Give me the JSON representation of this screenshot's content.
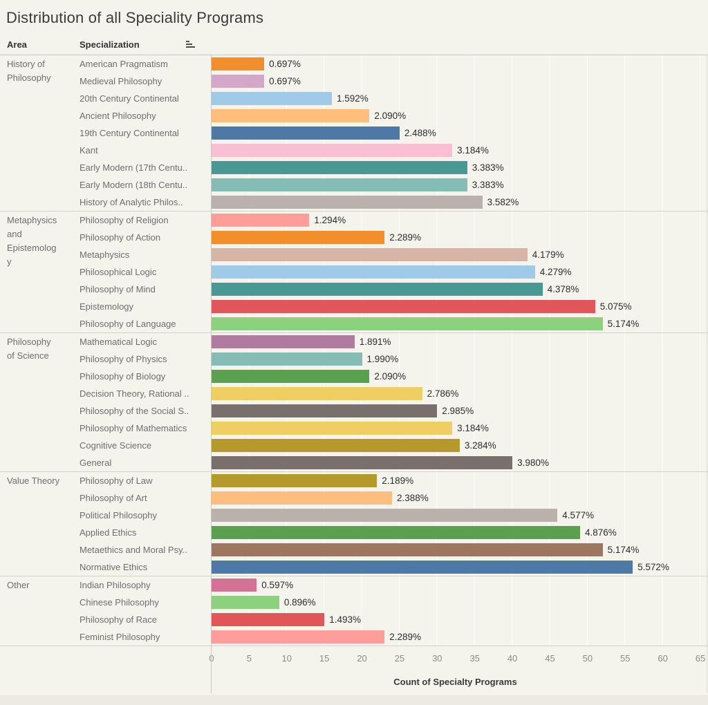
{
  "title": "Distribution of all Speciality Programs",
  "header": {
    "area": "Area",
    "specialization": "Specialization"
  },
  "axis": {
    "title": "Count of Specialty Programs",
    "ticks": [
      0,
      5,
      10,
      15,
      20,
      25,
      30,
      35,
      40,
      45,
      50,
      55,
      60,
      65
    ],
    "min": 0,
    "max": 65
  },
  "chart_data": {
    "type": "bar",
    "orientation": "horizontal",
    "title": "Distribution of all Speciality Programs",
    "xlabel": "Count of Specialty Programs",
    "xlim": [
      0,
      65
    ],
    "grid": "vertical-faint",
    "groups": [
      {
        "area": "History of Philosophy",
        "area_lines": [
          "History of",
          "Philosophy"
        ],
        "rows": [
          {
            "label": "American Pragmatism",
            "count": 7,
            "pct": "0.697%",
            "color": "#F28E2B"
          },
          {
            "label": "Medieval Philosophy",
            "count": 7,
            "pct": "0.697%",
            "color": "#D4A6C8"
          },
          {
            "label": "20th Century Continental",
            "count": 16,
            "pct": "1.592%",
            "color": "#A0CBE8"
          },
          {
            "label": "Ancient Philosophy",
            "count": 21,
            "pct": "2.090%",
            "color": "#FFBE7D"
          },
          {
            "label": "19th Century Continental",
            "count": 25,
            "pct": "2.488%",
            "color": "#4E79A7"
          },
          {
            "label": "Kant",
            "count": 32,
            "pct": "3.184%",
            "color": "#FABFD2"
          },
          {
            "label": "Early Modern (17th Centu..",
            "count": 34,
            "pct": "3.383%",
            "color": "#499894"
          },
          {
            "label": "Early Modern (18th Centu..",
            "count": 34,
            "pct": "3.383%",
            "color": "#86BCB6"
          },
          {
            "label": "History of Analytic Philos..",
            "count": 36,
            "pct": "3.582%",
            "color": "#BAB0AC"
          }
        ]
      },
      {
        "area": "Metaphysics and Epistemology",
        "area_lines": [
          "Metaphysics",
          "and",
          "Epistemolog",
          "y"
        ],
        "rows": [
          {
            "label": "Philosophy of Religion",
            "count": 13,
            "pct": "1.294%",
            "color": "#FF9D9A"
          },
          {
            "label": "Philosophy of Action",
            "count": 23,
            "pct": "2.289%",
            "color": "#F28E2B"
          },
          {
            "label": "Metaphysics",
            "count": 42,
            "pct": "4.179%",
            "color": "#D7B5A6"
          },
          {
            "label": "Philosophical Logic",
            "count": 43,
            "pct": "4.279%",
            "color": "#A0CBE8"
          },
          {
            "label": "Philosophy of Mind",
            "count": 44,
            "pct": "4.378%",
            "color": "#499894"
          },
          {
            "label": "Epistemology",
            "count": 51,
            "pct": "5.075%",
            "color": "#E15759"
          },
          {
            "label": "Philosophy of Language",
            "count": 52,
            "pct": "5.174%",
            "color": "#8CD17D"
          }
        ]
      },
      {
        "area": "Philosophy of Science",
        "area_lines": [
          "Philosophy",
          "of Science"
        ],
        "rows": [
          {
            "label": "Mathematical Logic",
            "count": 19,
            "pct": "1.891%",
            "color": "#B07AA1"
          },
          {
            "label": "Philosophy of Physics",
            "count": 20,
            "pct": "1.990%",
            "color": "#86BCB6"
          },
          {
            "label": "Philosophy of Biology",
            "count": 21,
            "pct": "2.090%",
            "color": "#59A14F"
          },
          {
            "label": "Decision Theory, Rational ..",
            "count": 28,
            "pct": "2.786%",
            "color": "#F1CE63"
          },
          {
            "label": "Philosophy of the Social S..",
            "count": 30,
            "pct": "2.985%",
            "color": "#79706E"
          },
          {
            "label": "Philosophy of Mathematics",
            "count": 32,
            "pct": "3.184%",
            "color": "#F1CE63"
          },
          {
            "label": "Cognitive Science",
            "count": 33,
            "pct": "3.284%",
            "color": "#B6992D"
          },
          {
            "label": "General",
            "count": 40,
            "pct": "3.980%",
            "color": "#79706E"
          }
        ]
      },
      {
        "area": "Value Theory",
        "area_lines": [
          "Value Theory"
        ],
        "rows": [
          {
            "label": "Philosophy of Law",
            "count": 22,
            "pct": "2.189%",
            "color": "#B6992D"
          },
          {
            "label": "Philosophy of Art",
            "count": 24,
            "pct": "2.388%",
            "color": "#FFBE7D"
          },
          {
            "label": "Political Philosophy",
            "count": 46,
            "pct": "4.577%",
            "color": "#BAB0AC"
          },
          {
            "label": "Applied Ethics",
            "count": 49,
            "pct": "4.876%",
            "color": "#59A14F"
          },
          {
            "label": "Metaethics and Moral Psy..",
            "count": 52,
            "pct": "5.174%",
            "color": "#9D7660"
          },
          {
            "label": "Normative Ethics",
            "count": 56,
            "pct": "5.572%",
            "color": "#4E79A7"
          }
        ]
      },
      {
        "area": "Other",
        "area_lines": [
          "Other"
        ],
        "rows": [
          {
            "label": "Indian Philosophy",
            "count": 6,
            "pct": "0.597%",
            "color": "#D37295"
          },
          {
            "label": "Chinese Philosophy",
            "count": 9,
            "pct": "0.896%",
            "color": "#8CD17D"
          },
          {
            "label": "Philosophy of Race",
            "count": 15,
            "pct": "1.493%",
            "color": "#E15759"
          },
          {
            "label": "Feminist Philosophy",
            "count": 23,
            "pct": "2.289%",
            "color": "#FF9D9A"
          }
        ]
      }
    ]
  }
}
